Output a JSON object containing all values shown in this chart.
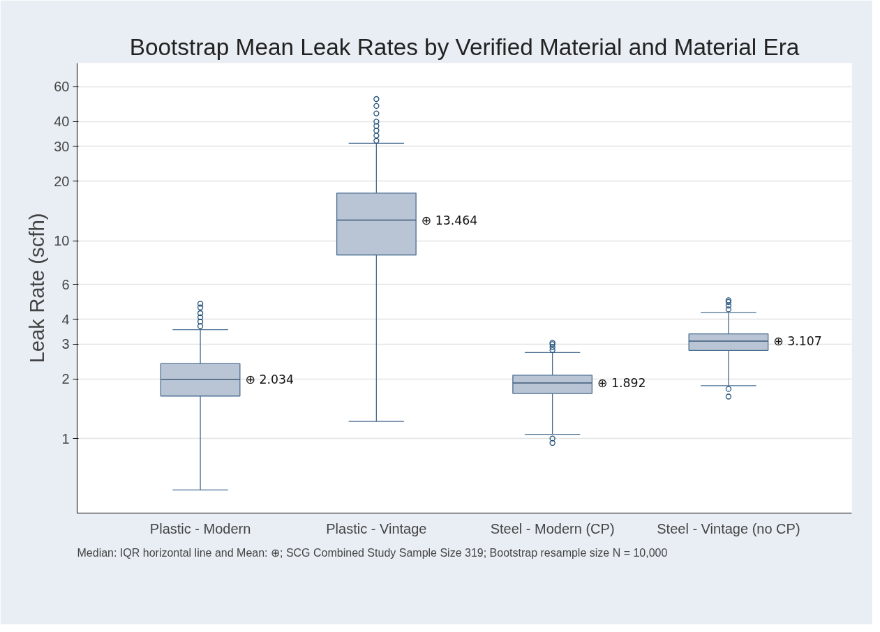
{
  "chart_data": {
    "type": "box",
    "title": "Bootstrap Mean Leak Rates by Verified Material and Material Era",
    "ylabel": "Leak Rate (scfh)",
    "categories": [
      "Plastic - Modern",
      "Plastic - Vintage",
      "Steel - Modern (CP)",
      "Steel - Vintage (no CP)"
    ],
    "color": "#b9c5d5",
    "boxes": [
      {
        "low": 0.55,
        "q1": 1.64,
        "median": 1.99,
        "q3": 2.39,
        "high": 3.55,
        "outliers": [
          3.7,
          3.9,
          4.1,
          4.3,
          4.6,
          4.8
        ]
      },
      {
        "low": 1.22,
        "q1": 8.47,
        "median": 12.7,
        "q3": 17.4,
        "high": 31.1,
        "outliers": [
          32,
          34,
          36,
          38,
          40,
          44,
          48,
          52
        ]
      },
      {
        "low": 1.05,
        "q1": 1.69,
        "median": 1.91,
        "q3": 2.09,
        "high": 2.72,
        "outliers": [
          2.8,
          2.9,
          3.0,
          3.05,
          1.0,
          0.95
        ]
      },
      {
        "low": 1.85,
        "q1": 2.79,
        "median": 3.11,
        "q3": 3.38,
        "high": 4.33,
        "outliers": [
          4.5,
          4.7,
          4.9,
          5.0,
          1.78,
          1.63
        ]
      }
    ],
    "log": true,
    "ylim": [
      0.42,
      79
    ],
    "yticks": [
      1,
      2,
      3,
      4,
      6,
      10,
      20,
      30,
      40,
      60
    ],
    "grid": "y",
    "annotations": [
      "⊕ 2.034",
      "⊕ 13.464",
      "⊕ 1.892",
      "⊕ 3.107",
      "Median: IQR horizontal line and Mean: ⊕; SCG Combined Study Sample Size 319; Bootstrap resample size N = 10,000"
    ]
  }
}
